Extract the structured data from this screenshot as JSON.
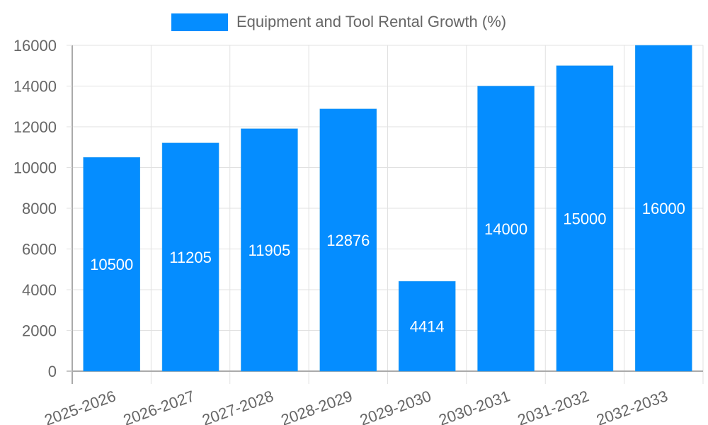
{
  "chart_data": {
    "type": "bar",
    "title": "",
    "legend": [
      {
        "label": "Equipment and Tool Rental Growth (%)",
        "color": "#058DFF"
      }
    ],
    "legend_position": "top",
    "categories": [
      "2025-2026",
      "2026-2027",
      "2027-2028",
      "2028-2029",
      "2029-2030",
      "2030-2031",
      "2031-2032",
      "2032-2033"
    ],
    "series": [
      {
        "name": "Equipment and Tool Rental Growth (%)",
        "values": [
          10500,
          11205,
          11905,
          12876,
          4414,
          14000,
          15000,
          16000
        ],
        "color": "#058DFF"
      }
    ],
    "data_labels": [
      "10500",
      "11205",
      "11905",
      "12876",
      "4414",
      "14000",
      "15000",
      "16000"
    ],
    "xlabel": "",
    "ylabel": "",
    "ylim": [
      0,
      16000
    ],
    "yticks": [
      0,
      2000,
      4000,
      6000,
      8000,
      10000,
      12000,
      14000,
      16000
    ],
    "grid": true
  },
  "legend": {
    "label": "Equipment and Tool Rental Growth (%)"
  }
}
